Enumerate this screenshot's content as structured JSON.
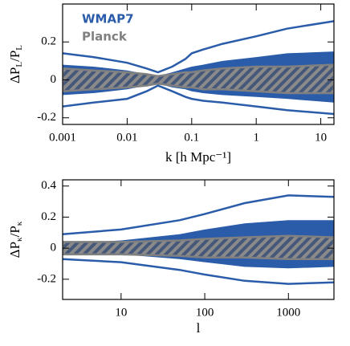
{
  "chart_data": [
    {
      "type": "band",
      "xlabel": "k [h Mpc⁻¹]",
      "ylabel": [
        "ΔP",
        "L",
        "/P",
        "L"
      ],
      "xscale": "log",
      "xlim": [
        0.001,
        16
      ],
      "xticks": [
        0.001,
        0.01,
        0.1,
        1,
        10
      ],
      "ylim": [
        -0.235,
        0.4
      ],
      "yticks": [
        -0.2,
        0,
        0.2
      ],
      "legend": "upper left",
      "x": [
        0.001,
        0.003,
        0.01,
        0.02,
        0.03,
        0.05,
        0.08,
        0.1,
        0.15,
        0.3,
        1,
        3,
        16
      ],
      "series": [
        {
          "name": "WMAP7",
          "color": "#2a5caa",
          "band": {
            "upper": [
              0.08,
              0.07,
              0.05,
              0.03,
              0.02,
              0.04,
              0.06,
              0.07,
              0.08,
              0.1,
              0.12,
              0.14,
              0.15
            ],
            "lower": [
              -0.08,
              -0.07,
              -0.05,
              -0.03,
              -0.02,
              -0.04,
              -0.05,
              -0.06,
              -0.07,
              -0.08,
              -0.09,
              -0.1,
              -0.12
            ]
          },
          "envelope": {
            "upper": [
              0.14,
              0.12,
              0.09,
              0.06,
              0.04,
              0.07,
              0.11,
              0.14,
              0.16,
              0.19,
              0.23,
              0.27,
              0.31
            ],
            "lower": [
              -0.14,
              -0.12,
              -0.1,
              -0.06,
              -0.03,
              -0.06,
              -0.09,
              -0.1,
              -0.11,
              -0.12,
              -0.14,
              -0.16,
              -0.18
            ]
          }
        },
        {
          "name": "Planck",
          "color": "#808080",
          "band": {
            "upper": [
              0.06,
              0.05,
              0.04,
              0.03,
              0.02,
              0.03,
              0.04,
              0.04,
              0.05,
              0.06,
              0.07,
              0.07,
              0.08
            ],
            "lower": [
              -0.06,
              -0.05,
              -0.04,
              -0.03,
              -0.02,
              -0.03,
              -0.04,
              -0.04,
              -0.05,
              -0.05,
              -0.06,
              -0.07,
              -0.07
            ]
          }
        }
      ]
    },
    {
      "type": "band",
      "xlabel": "l",
      "ylabel": [
        "ΔP",
        "κ",
        "/P",
        "κ"
      ],
      "xscale": "log",
      "xlim": [
        2,
        3500
      ],
      "xticks": [
        10,
        100,
        1000
      ],
      "ylim": [
        -0.33,
        0.44
      ],
      "yticks": [
        -0.2,
        0,
        0.2,
        0.4
      ],
      "x": [
        2,
        10,
        50,
        100,
        300,
        1000,
        3500
      ],
      "series": [
        {
          "name": "WMAP7",
          "color": "#2a5caa",
          "band": {
            "upper": [
              0.03,
              0.05,
              0.09,
              0.12,
              0.16,
              0.18,
              0.18
            ],
            "lower": [
              -0.03,
              -0.04,
              -0.07,
              -0.09,
              -0.12,
              -0.13,
              -0.12
            ]
          },
          "envelope": {
            "upper": [
              0.09,
              0.12,
              0.18,
              0.22,
              0.29,
              0.34,
              0.33
            ],
            "lower": [
              -0.07,
              -0.09,
              -0.14,
              -0.17,
              -0.21,
              -0.23,
              -0.22
            ]
          }
        },
        {
          "name": "Planck",
          "color": "#808080",
          "band": {
            "upper": [
              0.04,
              0.04,
              0.05,
              0.06,
              0.07,
              0.08,
              0.07
            ],
            "lower": [
              -0.04,
              -0.04,
              -0.05,
              -0.06,
              -0.06,
              -0.07,
              -0.07
            ]
          }
        }
      ]
    }
  ]
}
